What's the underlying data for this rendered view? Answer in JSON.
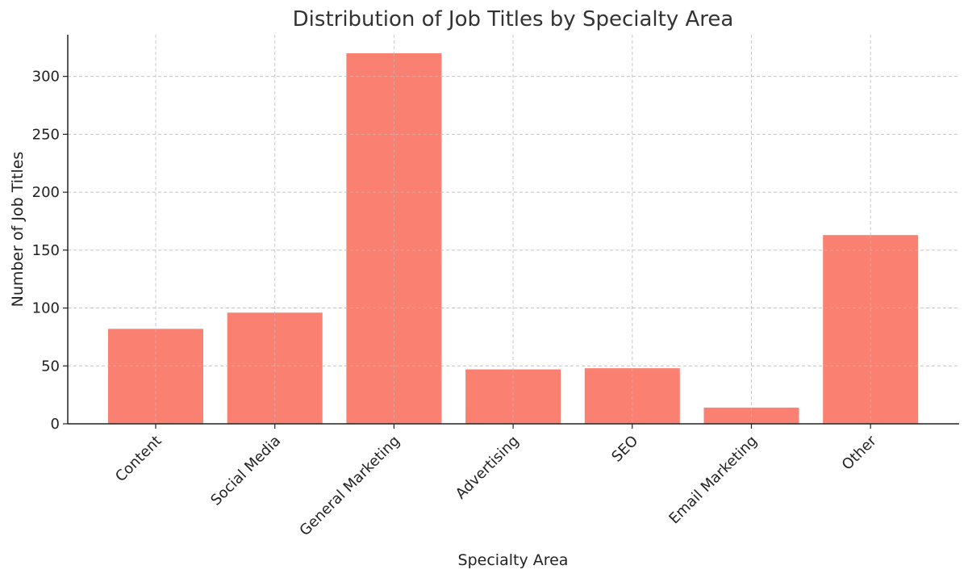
{
  "chart_data": {
    "type": "bar",
    "title": "Distribution of Job Titles by Specialty Area",
    "xlabel": "Specialty Area",
    "ylabel": "Number of Job Titles",
    "categories": [
      "Content",
      "Social Media",
      "General Marketing",
      "Advertising",
      "SEO",
      "Email Marketing",
      "Other"
    ],
    "values": [
      82,
      96,
      320,
      47,
      48,
      14,
      163
    ],
    "ylim": [
      0,
      336
    ],
    "yticks": [
      0,
      50,
      100,
      150,
      200,
      250,
      300
    ],
    "grid": true,
    "bar_color": "#fa8072"
  }
}
